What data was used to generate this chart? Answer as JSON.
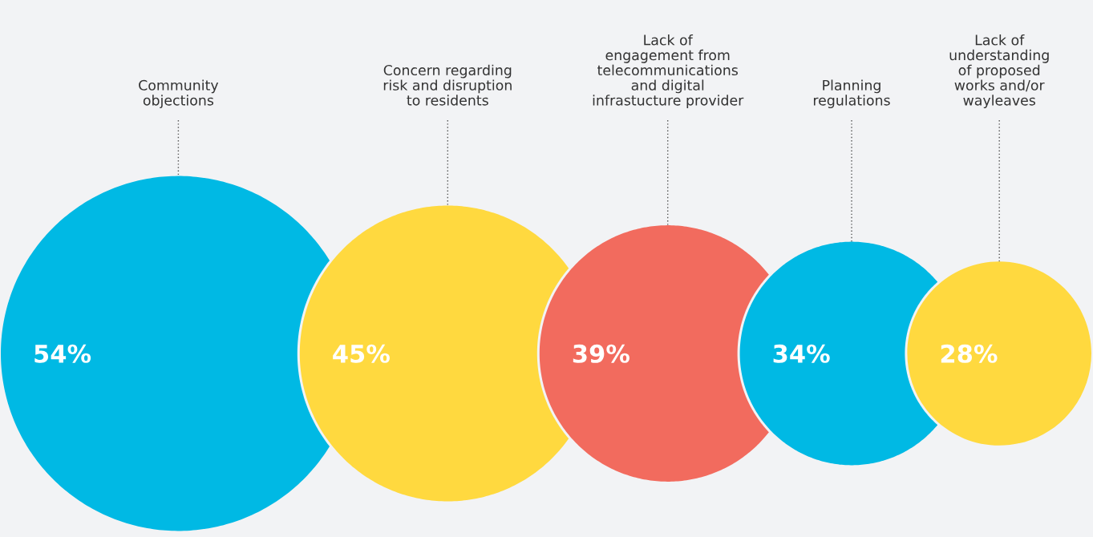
{
  "chart_data": {
    "type": "other",
    "categories": [
      "Community\nobjections",
      "Concern regarding\nrisk and disruption\nto residents",
      "Lack of\nengagement from\ntelecommunications\nand digital\ninfrastucture provider",
      "Planning\nregulations",
      "Lack of\nunderstanding\nof proposed\nworks and/or\nwayleaves"
    ],
    "values": [
      54,
      45,
      39,
      34,
      28
    ],
    "value_labels": [
      "54%",
      "45%",
      "39%",
      "34%",
      "28%"
    ],
    "colors": [
      "#00b9e4",
      "#ffd93f",
      "#f26b5e",
      "#00b9e4",
      "#ffd93f"
    ]
  }
}
